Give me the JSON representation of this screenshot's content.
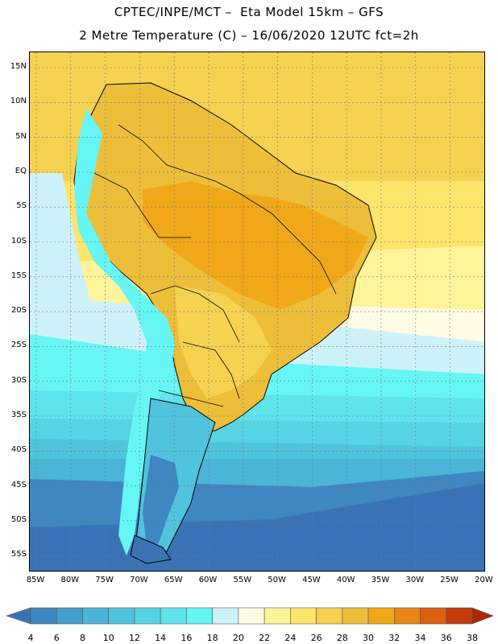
{
  "title": {
    "line1": "CPTEC/INPE/MCT –  Eta Model 15km – GFS",
    "line2": "2 Metre Temperature (C) – 16/06/2020 12UTC fct=2h"
  },
  "map": {
    "region": "South America",
    "lat_labels": [
      "15N",
      "10N",
      "5N",
      "EQ",
      "5S",
      "10S",
      "15S",
      "20S",
      "25S",
      "30S",
      "35S",
      "40S",
      "45S",
      "50S",
      "55S"
    ],
    "lon_labels": [
      "85W",
      "80W",
      "75W",
      "70W",
      "65W",
      "60W",
      "55W",
      "50W",
      "45W",
      "40W",
      "35W",
      "30W",
      "25W",
      "20W"
    ]
  },
  "colorbar": {
    "labels": [
      "4",
      "6",
      "8",
      "10",
      "12",
      "14",
      "16",
      "18",
      "20",
      "22",
      "24",
      "26",
      "28",
      "30",
      "32",
      "34",
      "36",
      "38"
    ],
    "colors": [
      "#3a73b5",
      "#3e87c0",
      "#43a0cc",
      "#4ab5d6",
      "#50c4dd",
      "#56d4e4",
      "#5fe4ec",
      "#66f6f6",
      "#cdf2fa",
      "#fffbe4",
      "#fff49a",
      "#fde46a",
      "#f5d24f",
      "#edbe3a",
      "#f0a818",
      "#e88418",
      "#dc6010",
      "#c43c0a",
      "#a82808"
    ]
  }
}
